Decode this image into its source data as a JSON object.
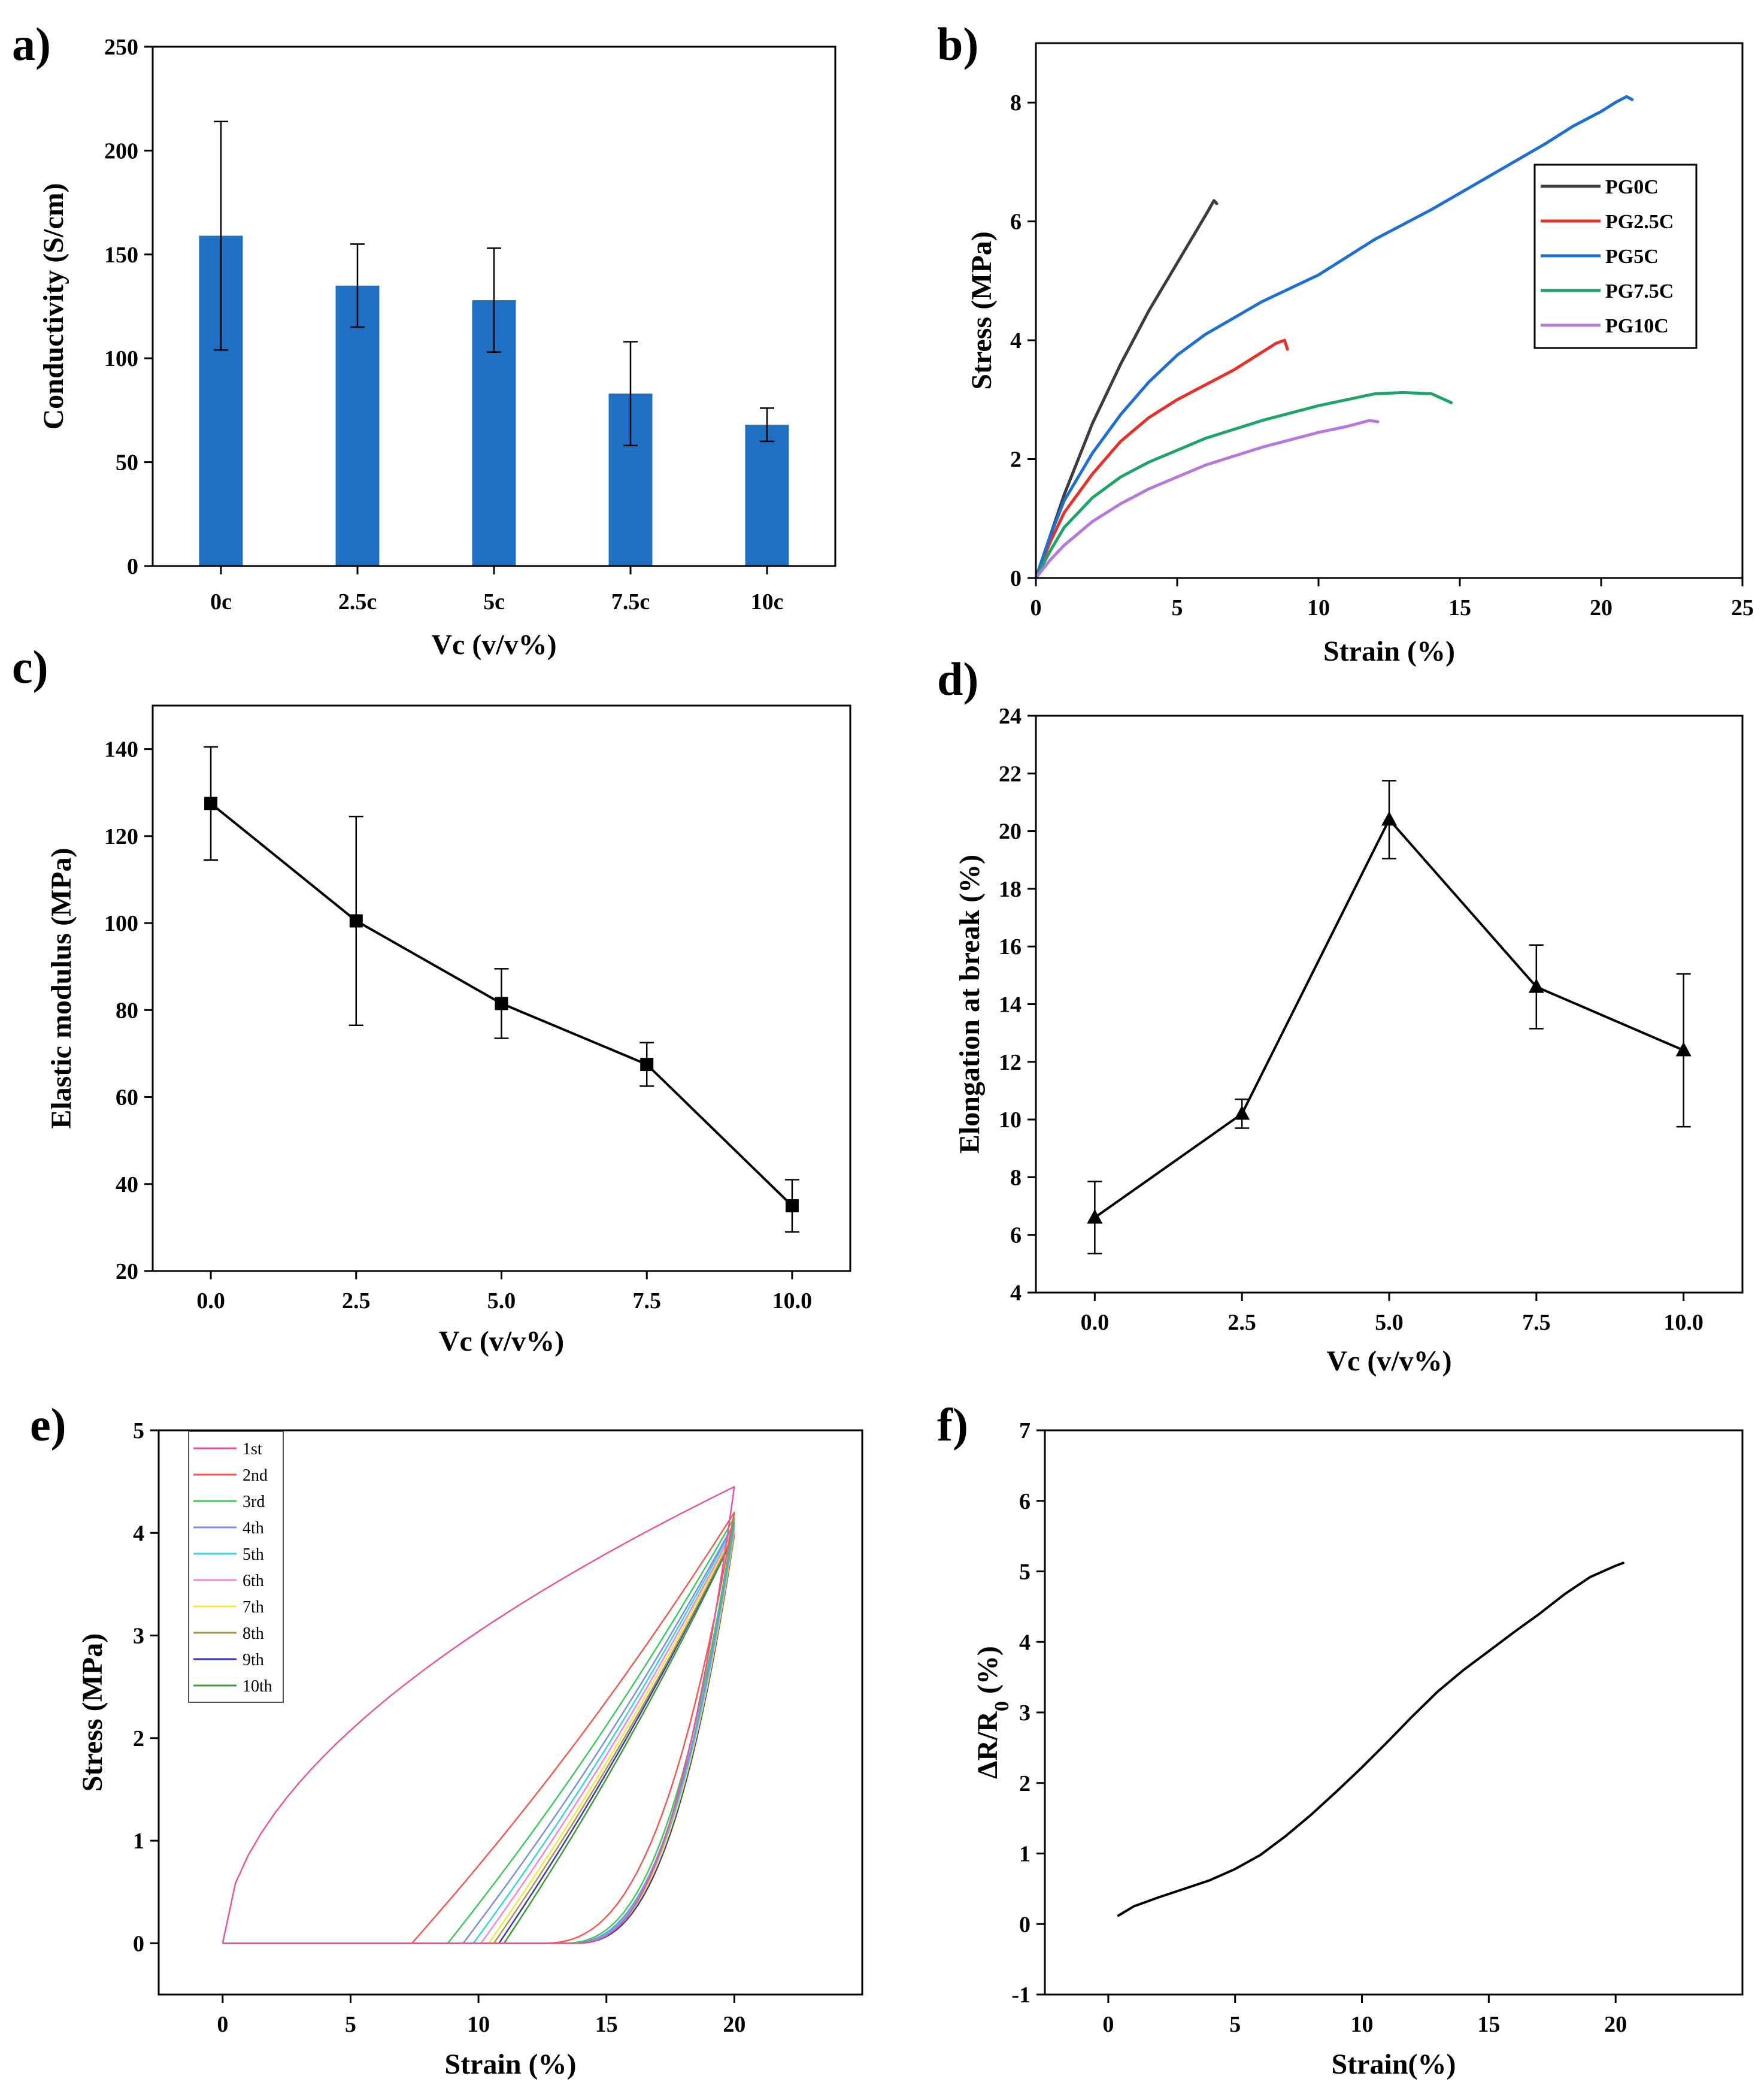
{
  "chart_data": [
    {
      "id": "a",
      "panel_label": "a)",
      "type": "bar",
      "xlabel": "Vc (v/v%)",
      "ylabel": "Conductivity (S/cm)",
      "ylim": [
        0,
        250
      ],
      "yticks": [
        0,
        50,
        100,
        150,
        200,
        250
      ],
      "categories": [
        "0c",
        "2.5c",
        "5c",
        "7.5c",
        "10c"
      ],
      "values": [
        159,
        135,
        128,
        83,
        68
      ],
      "errors": [
        55,
        20,
        25,
        25,
        8
      ],
      "bar_color": "#1f6fc5"
    },
    {
      "id": "b",
      "panel_label": "b)",
      "type": "line",
      "xlabel": "Strain (%)",
      "ylabel": "Stress (MPa)",
      "xlim": [
        0,
        25
      ],
      "ylim": [
        0,
        9
      ],
      "xticks": [
        0,
        5,
        10,
        15,
        20,
        25
      ],
      "yticks": [
        0,
        2,
        4,
        6,
        8
      ],
      "legend": "top-right",
      "series": [
        {
          "name": "PG0C",
          "color": "#3c3c3c",
          "x": [
            0,
            0.5,
            1,
            1.5,
            2,
            3,
            4,
            5,
            5.5,
            6,
            6.3,
            6.4
          ],
          "y": [
            0,
            0.7,
            1.4,
            2.0,
            2.6,
            3.6,
            4.5,
            5.3,
            5.7,
            6.1,
            6.35,
            6.3
          ]
        },
        {
          "name": "PG2.5C",
          "color": "#e8302a",
          "x": [
            0,
            0.5,
            1,
            2,
            3,
            4,
            5,
            6,
            7,
            8,
            8.5,
            8.8,
            8.9
          ],
          "y": [
            0,
            0.6,
            1.1,
            1.75,
            2.3,
            2.7,
            3.0,
            3.25,
            3.5,
            3.8,
            3.95,
            4.0,
            3.85
          ]
        },
        {
          "name": "PG5C",
          "color": "#1e6fd0",
          "x": [
            0,
            0.5,
            1,
            2,
            3,
            4,
            5,
            6,
            8,
            10,
            12,
            14,
            16,
            18,
            19,
            20,
            20.5,
            20.9,
            21.1
          ],
          "y": [
            0,
            0.7,
            1.3,
            2.1,
            2.75,
            3.3,
            3.75,
            4.1,
            4.65,
            5.1,
            5.7,
            6.2,
            6.75,
            7.3,
            7.6,
            7.85,
            8.0,
            8.1,
            8.05
          ]
        },
        {
          "name": "PG7.5C",
          "color": "#1fa36a",
          "x": [
            0,
            0.5,
            1,
            2,
            3,
            4,
            5,
            6,
            8,
            10,
            12,
            13,
            14,
            14.7
          ],
          "y": [
            0,
            0.45,
            0.85,
            1.35,
            1.7,
            1.95,
            2.15,
            2.35,
            2.65,
            2.9,
            3.1,
            3.12,
            3.1,
            2.95
          ]
        },
        {
          "name": "PG10C",
          "color": "#b678dd",
          "x": [
            0,
            0.5,
            1,
            2,
            3,
            4,
            5,
            6,
            8,
            10,
            11,
            11.8,
            12.1
          ],
          "y": [
            0,
            0.3,
            0.55,
            0.95,
            1.25,
            1.5,
            1.7,
            1.9,
            2.2,
            2.45,
            2.55,
            2.65,
            2.63
          ]
        }
      ]
    },
    {
      "id": "c",
      "panel_label": "c)",
      "type": "line",
      "xlabel": "Vc (v/v%)",
      "ylabel": "Elastic modulus (MPa)",
      "xlim": [
        -1.0,
        11.0
      ],
      "ylim": [
        20,
        150
      ],
      "xticks": [
        "0.0",
        "2.5",
        "5.0",
        "7.5",
        "10.0"
      ],
      "yticks": [
        20,
        40,
        60,
        80,
        100,
        120,
        140
      ],
      "marker": "square",
      "x": [
        0,
        2.5,
        5,
        7.5,
        10
      ],
      "y": [
        127.5,
        100.5,
        81.5,
        67.5,
        35
      ],
      "errors": [
        13,
        24,
        8,
        5,
        6
      ]
    },
    {
      "id": "d",
      "panel_label": "d)",
      "type": "line",
      "xlabel": "Vc (v/v%)",
      "ylabel": "Elongation at break (%)",
      "xlim": [
        -1.0,
        11.0
      ],
      "ylim": [
        4,
        24
      ],
      "xticks": [
        "0.0",
        "2.5",
        "5.0",
        "7.5",
        "10.0"
      ],
      "yticks": [
        4,
        6,
        8,
        10,
        12,
        14,
        16,
        18,
        20,
        22,
        24
      ],
      "marker": "triangle",
      "x": [
        0,
        2.5,
        5,
        7.5,
        10
      ],
      "y": [
        6.6,
        10.2,
        20.4,
        14.6,
        12.4
      ],
      "errors": [
        1.25,
        0.5,
        1.35,
        1.45,
        2.65
      ]
    },
    {
      "id": "e",
      "panel_label": "e)",
      "type": "line",
      "xlabel": "Strain (%)",
      "ylabel": "Stress (MPa)",
      "xlim": [
        -2.5,
        25
      ],
      "ylim": [
        -0.5,
        5
      ],
      "xticks": [
        0,
        5,
        10,
        15,
        20
      ],
      "yticks": [
        0,
        1,
        2,
        3,
        4,
        5
      ],
      "legend": "top-left",
      "cycles": [
        {
          "name": "1st",
          "color": "#e8559a",
          "peak": 4.45,
          "x0": 11.8
        },
        {
          "name": "2nd",
          "color": "#f05a50",
          "peak": 4.2,
          "x0": 7.4,
          "r0": 12.4
        },
        {
          "name": "3rd",
          "color": "#3ec95a",
          "peak": 4.15,
          "x0": 8.8,
          "r0": 13.2
        },
        {
          "name": "4th",
          "color": "#7a8ee8",
          "peak": 4.1,
          "x0": 9.4,
          "r0": 13.4
        },
        {
          "name": "5th",
          "color": "#37d4d8",
          "peak": 4.08,
          "x0": 9.8,
          "r0": 13.5
        },
        {
          "name": "6th",
          "color": "#ee86dc",
          "peak": 4.05,
          "x0": 10.1,
          "r0": 13.5
        },
        {
          "name": "7th",
          "color": "#f4e64a",
          "peak": 4.03,
          "x0": 10.4,
          "r0": 13.6
        },
        {
          "name": "8th",
          "color": "#a9954e",
          "peak": 4.0,
          "x0": 10.6,
          "r0": 13.6
        },
        {
          "name": "9th",
          "color": "#3b36b8",
          "peak": 4.0,
          "x0": 10.8,
          "r0": 13.7
        },
        {
          "name": "10th",
          "color": "#3a9c3a",
          "peak": 3.98,
          "x0": 11.0,
          "r0": 13.7
        }
      ]
    },
    {
      "id": "f",
      "panel_label": "f)",
      "type": "line",
      "xlabel": "Strain(%)",
      "ylabel": "ΔR/R0 (%)",
      "xlim": [
        -2.5,
        25
      ],
      "ylim": [
        -1,
        7
      ],
      "xticks": [
        0,
        5,
        10,
        15,
        20
      ],
      "yticks": [
        -1,
        0,
        1,
        2,
        3,
        4,
        5,
        6,
        7
      ],
      "x": [
        0.4,
        1,
        2,
        3,
        4,
        5,
        6,
        7,
        8,
        9,
        10,
        11,
        12,
        13,
        14,
        15,
        16,
        17,
        18,
        19,
        20,
        20.3
      ],
      "y": [
        0.12,
        0.25,
        0.38,
        0.5,
        0.62,
        0.78,
        0.98,
        1.25,
        1.55,
        1.88,
        2.22,
        2.58,
        2.95,
        3.3,
        3.6,
        3.87,
        4.14,
        4.4,
        4.68,
        4.92,
        5.08,
        5.12
      ]
    }
  ]
}
